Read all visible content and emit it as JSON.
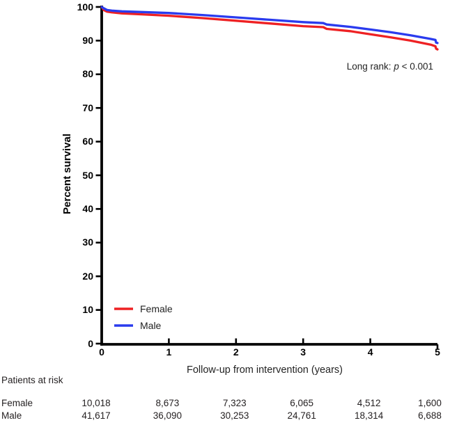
{
  "chart_data": {
    "type": "line",
    "subtype": "kaplan-meier-survival",
    "title": "",
    "xlabel": "Follow-up from intervention (years)",
    "ylabel": "Percent survival",
    "xlim": [
      0,
      5
    ],
    "ylim": [
      0,
      100
    ],
    "x_ticks": [
      0,
      1,
      2,
      3,
      4,
      5
    ],
    "y_ticks": [
      0,
      10,
      20,
      30,
      40,
      50,
      60,
      70,
      80,
      90,
      100
    ],
    "grid": false,
    "legend_position": "inside-lower-left",
    "annotation": {
      "prefix": "Long rank: ",
      "italic": "p",
      "suffix": " < 0.001"
    },
    "series": [
      {
        "name": "Female",
        "color": "#ee2123",
        "points": [
          [
            0,
            100
          ],
          [
            0.03,
            99.1
          ],
          [
            0.08,
            98.6
          ],
          [
            0.15,
            98.4
          ],
          [
            0.3,
            98.1
          ],
          [
            0.6,
            97.8
          ],
          [
            1.0,
            97.4
          ],
          [
            1.5,
            96.7
          ],
          [
            2.0,
            95.9
          ],
          [
            2.5,
            95.1
          ],
          [
            3.0,
            94.3
          ],
          [
            3.3,
            94.0
          ],
          [
            3.35,
            93.5
          ],
          [
            3.7,
            92.8
          ],
          [
            4.0,
            91.9
          ],
          [
            4.3,
            91.0
          ],
          [
            4.6,
            90.0
          ],
          [
            4.9,
            88.8
          ],
          [
            4.97,
            88.3
          ],
          [
            4.98,
            87.6
          ],
          [
            5.0,
            87.4
          ]
        ]
      },
      {
        "name": "Male",
        "color": "#2a3bee",
        "points": [
          [
            0,
            100
          ],
          [
            0.03,
            99.6
          ],
          [
            0.08,
            99.1
          ],
          [
            0.15,
            98.9
          ],
          [
            0.3,
            98.7
          ],
          [
            0.6,
            98.5
          ],
          [
            1.0,
            98.2
          ],
          [
            1.5,
            97.6
          ],
          [
            2.0,
            96.9
          ],
          [
            2.5,
            96.2
          ],
          [
            3.0,
            95.5
          ],
          [
            3.3,
            95.2
          ],
          [
            3.35,
            94.8
          ],
          [
            3.7,
            94.1
          ],
          [
            4.0,
            93.3
          ],
          [
            4.3,
            92.5
          ],
          [
            4.6,
            91.6
          ],
          [
            4.9,
            90.5
          ],
          [
            4.97,
            90.2
          ],
          [
            4.98,
            89.4
          ],
          [
            5.0,
            89.3
          ]
        ]
      }
    ]
  },
  "risk_table": {
    "title": "Patients at risk",
    "rows": [
      {
        "label": "Female",
        "values": [
          "10,018",
          "8,673",
          "7,323",
          "6,065",
          "4,512",
          "1,600"
        ]
      },
      {
        "label": "Male",
        "values": [
          "41,617",
          "36,090",
          "30,253",
          "24,761",
          "18,314",
          "6,688"
        ]
      }
    ]
  },
  "colors": {
    "axis": "#000000",
    "female": "#ee2123",
    "male": "#2a3bee",
    "text": "#231f20"
  }
}
